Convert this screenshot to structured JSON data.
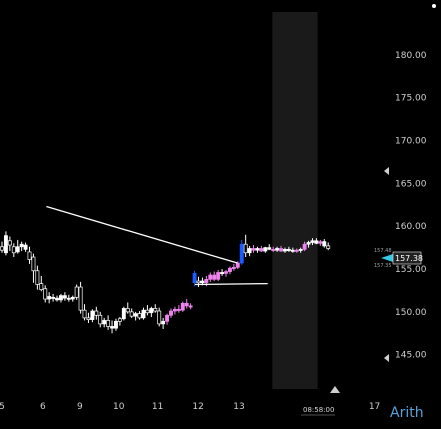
{
  "dot_icon": "status-dot",
  "watermark": "Arith",
  "current_price": "157.38",
  "price_hi": "157.48",
  "price_lo": "157.35",
  "time_label": "08:58:00",
  "colors": {
    "up_body": "#ffffff",
    "down_body": "#000000",
    "pink": "#ee82ee",
    "blue": "#1e5bff",
    "cyan": "#35c9e6",
    "session_shade": "#1a1a1a"
  },
  "chart_data": {
    "type": "candlestick",
    "ylim": [
      141,
      185
    ],
    "y_ticks": [
      "180.00",
      "175.00",
      "170.00",
      "165.00",
      "160.00",
      "155.00",
      "150.00",
      "145.00"
    ],
    "y_tick_values": [
      180,
      175,
      170,
      165,
      160,
      155,
      150,
      145
    ],
    "x_ticks": [
      "5",
      "6",
      "9",
      "10",
      "11",
      "12",
      "13",
      "17"
    ],
    "x_tick_index": [
      0,
      10.4,
      19.8,
      29.7,
      39.6,
      49.9,
      60.3,
      94.8
    ],
    "candles": [
      {
        "o": 157.6,
        "h": 158.2,
        "l": 156.9,
        "c": 157.2,
        "k": "d"
      },
      {
        "o": 156.9,
        "h": 159.4,
        "l": 156.6,
        "c": 158.9,
        "k": "u"
      },
      {
        "o": 158.3,
        "h": 158.8,
        "l": 157.1,
        "c": 157.8,
        "k": "d"
      },
      {
        "o": 157.6,
        "h": 158.0,
        "l": 156.4,
        "c": 156.9,
        "k": "d"
      },
      {
        "o": 157.0,
        "h": 158.4,
        "l": 156.8,
        "c": 157.6,
        "k": "u"
      },
      {
        "o": 157.6,
        "h": 158.2,
        "l": 157.1,
        "c": 157.9,
        "k": "u"
      },
      {
        "o": 157.8,
        "h": 158.1,
        "l": 157.0,
        "c": 157.3,
        "k": "u"
      },
      {
        "o": 157.0,
        "h": 157.6,
        "l": 155.6,
        "c": 156.1,
        "k": "d"
      },
      {
        "o": 156.4,
        "h": 156.8,
        "l": 153.4,
        "c": 154.8,
        "k": "d"
      },
      {
        "o": 154.8,
        "h": 155.4,
        "l": 152.6,
        "c": 153.2,
        "k": "d"
      },
      {
        "o": 153.3,
        "h": 154.2,
        "l": 152.4,
        "c": 152.6,
        "k": "d"
      },
      {
        "o": 152.7,
        "h": 153.1,
        "l": 151.1,
        "c": 151.5,
        "k": "d"
      },
      {
        "o": 151.5,
        "h": 152.3,
        "l": 151.0,
        "c": 151.8,
        "k": "u"
      },
      {
        "o": 151.7,
        "h": 152.1,
        "l": 151.2,
        "c": 151.6,
        "k": "u"
      },
      {
        "o": 151.6,
        "h": 151.9,
        "l": 151.2,
        "c": 151.4,
        "k": "u"
      },
      {
        "o": 151.4,
        "h": 152.1,
        "l": 151.1,
        "c": 151.9,
        "k": "u"
      },
      {
        "o": 151.9,
        "h": 152.3,
        "l": 151.3,
        "c": 151.6,
        "k": "u"
      },
      {
        "o": 151.6,
        "h": 152.0,
        "l": 151.2,
        "c": 151.5,
        "k": "u"
      },
      {
        "o": 151.5,
        "h": 151.9,
        "l": 151.2,
        "c": 151.7,
        "k": "u"
      },
      {
        "o": 151.7,
        "h": 153.2,
        "l": 151.4,
        "c": 152.9,
        "k": "d"
      },
      {
        "o": 152.9,
        "h": 153.5,
        "l": 149.8,
        "c": 150.2,
        "k": "d"
      },
      {
        "o": 150.2,
        "h": 150.9,
        "l": 149.0,
        "c": 149.3,
        "k": "d"
      },
      {
        "o": 149.3,
        "h": 149.9,
        "l": 148.7,
        "c": 149.1,
        "k": "d"
      },
      {
        "o": 149.1,
        "h": 150.3,
        "l": 148.8,
        "c": 150.1,
        "k": "u"
      },
      {
        "o": 150.1,
        "h": 150.6,
        "l": 149.1,
        "c": 149.6,
        "k": "d"
      },
      {
        "o": 149.6,
        "h": 150.0,
        "l": 148.2,
        "c": 148.6,
        "k": "d"
      },
      {
        "o": 148.6,
        "h": 149.3,
        "l": 148.2,
        "c": 149.0,
        "k": "u"
      },
      {
        "o": 149.0,
        "h": 149.6,
        "l": 147.9,
        "c": 148.3,
        "k": "d"
      },
      {
        "o": 148.3,
        "h": 149.0,
        "l": 147.5,
        "c": 148.1,
        "k": "u"
      },
      {
        "o": 148.1,
        "h": 149.2,
        "l": 147.8,
        "c": 148.9,
        "k": "u"
      },
      {
        "o": 148.9,
        "h": 149.4,
        "l": 148.4,
        "c": 149.2,
        "k": "d"
      },
      {
        "o": 149.2,
        "h": 150.6,
        "l": 149.0,
        "c": 150.4,
        "k": "u"
      },
      {
        "o": 150.4,
        "h": 151.1,
        "l": 149.8,
        "c": 150.0,
        "k": "d"
      },
      {
        "o": 150.0,
        "h": 150.4,
        "l": 149.3,
        "c": 149.5,
        "k": "d"
      },
      {
        "o": 149.5,
        "h": 150.0,
        "l": 149.0,
        "c": 149.8,
        "k": "u"
      },
      {
        "o": 149.8,
        "h": 150.1,
        "l": 149.1,
        "c": 149.3,
        "k": "d"
      },
      {
        "o": 149.3,
        "h": 150.5,
        "l": 149.1,
        "c": 150.2,
        "k": "u"
      },
      {
        "o": 150.2,
        "h": 150.8,
        "l": 149.6,
        "c": 149.9,
        "k": "d"
      },
      {
        "o": 149.9,
        "h": 150.6,
        "l": 149.4,
        "c": 150.4,
        "k": "u"
      },
      {
        "o": 150.4,
        "h": 150.9,
        "l": 149.9,
        "c": 150.1,
        "k": "d"
      },
      {
        "o": 150.1,
        "h": 150.5,
        "l": 148.3,
        "c": 148.6,
        "k": "d"
      },
      {
        "o": 148.6,
        "h": 149.3,
        "l": 148.0,
        "c": 148.9,
        "k": "u"
      },
      {
        "o": 148.9,
        "h": 149.8,
        "l": 148.5,
        "c": 149.6,
        "k": "p"
      },
      {
        "o": 149.6,
        "h": 150.4,
        "l": 149.3,
        "c": 150.1,
        "k": "p"
      },
      {
        "o": 150.1,
        "h": 150.6,
        "l": 149.7,
        "c": 150.3,
        "k": "p"
      },
      {
        "o": 150.3,
        "h": 150.8,
        "l": 149.9,
        "c": 150.2,
        "k": "p"
      },
      {
        "o": 150.2,
        "h": 151.2,
        "l": 150.0,
        "c": 151.0,
        "k": "p"
      },
      {
        "o": 151.0,
        "h": 151.5,
        "l": 150.4,
        "c": 150.7,
        "k": "p"
      },
      {
        "o": 150.7,
        "h": 151.0,
        "l": 150.3,
        "c": 150.6,
        "k": "p"
      },
      {
        "o": 153.4,
        "h": 154.8,
        "l": 153.0,
        "c": 154.5,
        "k": "b"
      },
      {
        "o": 153.4,
        "h": 154.1,
        "l": 152.9,
        "c": 153.6,
        "k": "d"
      },
      {
        "o": 153.6,
        "h": 154.0,
        "l": 153.1,
        "c": 153.4,
        "k": "u"
      },
      {
        "o": 153.4,
        "h": 154.2,
        "l": 153.0,
        "c": 153.8,
        "k": "p"
      },
      {
        "o": 153.8,
        "h": 154.6,
        "l": 153.5,
        "c": 154.3,
        "k": "p"
      },
      {
        "o": 154.3,
        "h": 154.7,
        "l": 153.6,
        "c": 153.8,
        "k": "p"
      },
      {
        "o": 153.8,
        "h": 154.9,
        "l": 153.6,
        "c": 154.6,
        "k": "p"
      },
      {
        "o": 154.6,
        "h": 155.0,
        "l": 154.2,
        "c": 154.5,
        "k": "u"
      },
      {
        "o": 154.5,
        "h": 154.9,
        "l": 154.1,
        "c": 154.7,
        "k": "p"
      },
      {
        "o": 154.7,
        "h": 155.3,
        "l": 154.4,
        "c": 155.1,
        "k": "p"
      },
      {
        "o": 155.1,
        "h": 155.6,
        "l": 154.8,
        "c": 155.2,
        "k": "p"
      },
      {
        "o": 155.2,
        "h": 155.9,
        "l": 155.0,
        "c": 155.7,
        "k": "p"
      },
      {
        "o": 155.7,
        "h": 158.4,
        "l": 155.5,
        "c": 157.9,
        "k": "b"
      },
      {
        "o": 157.9,
        "h": 159.0,
        "l": 156.4,
        "c": 156.9,
        "k": "d"
      },
      {
        "o": 156.9,
        "h": 157.7,
        "l": 156.5,
        "c": 157.4,
        "k": "u"
      },
      {
        "o": 157.4,
        "h": 157.8,
        "l": 156.9,
        "c": 157.2,
        "k": "p"
      },
      {
        "o": 157.2,
        "h": 157.6,
        "l": 156.9,
        "c": 157.4,
        "k": "u"
      },
      {
        "o": 157.4,
        "h": 157.7,
        "l": 157.0,
        "c": 157.1,
        "k": "p"
      },
      {
        "o": 157.1,
        "h": 157.6,
        "l": 156.9,
        "c": 157.5,
        "k": "u"
      },
      {
        "o": 157.5,
        "h": 157.9,
        "l": 157.2,
        "c": 157.3,
        "k": "u"
      },
      {
        "o": 157.3,
        "h": 157.6,
        "l": 157.0,
        "c": 157.2,
        "k": "p"
      },
      {
        "o": 157.2,
        "h": 157.6,
        "l": 157.0,
        "c": 157.4,
        "k": "u"
      },
      {
        "o": 157.4,
        "h": 157.7,
        "l": 157.0,
        "c": 157.1,
        "k": "p"
      },
      {
        "o": 157.1,
        "h": 157.5,
        "l": 156.9,
        "c": 157.3,
        "k": "u"
      },
      {
        "o": 157.3,
        "h": 157.6,
        "l": 157.0,
        "c": 157.2,
        "k": "u"
      },
      {
        "o": 157.2,
        "h": 157.5,
        "l": 156.9,
        "c": 157.1,
        "k": "u"
      },
      {
        "o": 157.1,
        "h": 157.4,
        "l": 156.9,
        "c": 157.2,
        "k": "p"
      },
      {
        "o": 157.2,
        "h": 157.5,
        "l": 156.9,
        "c": 157.3,
        "k": "u"
      },
      {
        "o": 157.3,
        "h": 158.2,
        "l": 157.1,
        "c": 157.9,
        "k": "p"
      },
      {
        "o": 157.9,
        "h": 158.3,
        "l": 157.5,
        "c": 158.1,
        "k": "u"
      },
      {
        "o": 158.1,
        "h": 158.6,
        "l": 157.8,
        "c": 158.3,
        "k": "u"
      },
      {
        "o": 158.3,
        "h": 158.6,
        "l": 157.9,
        "c": 158.0,
        "k": "u"
      },
      {
        "o": 158.0,
        "h": 158.4,
        "l": 157.7,
        "c": 158.2,
        "k": "p"
      },
      {
        "o": 158.2,
        "h": 158.5,
        "l": 157.5,
        "c": 157.7,
        "k": "u"
      },
      {
        "o": 157.7,
        "h": 158.1,
        "l": 157.2,
        "c": 157.4,
        "k": "d"
      }
    ],
    "trendlines": [
      {
        "x1": 11.3,
        "y1": 162.3,
        "x2": 59.9,
        "y2": 155.7
      },
      {
        "x1": 49.1,
        "y1": 153.2,
        "x2": 67.6,
        "y2": 153.3
      }
    ],
    "session_shade_index": [
      68.8,
      80.3
    ],
    "grid": false
  }
}
